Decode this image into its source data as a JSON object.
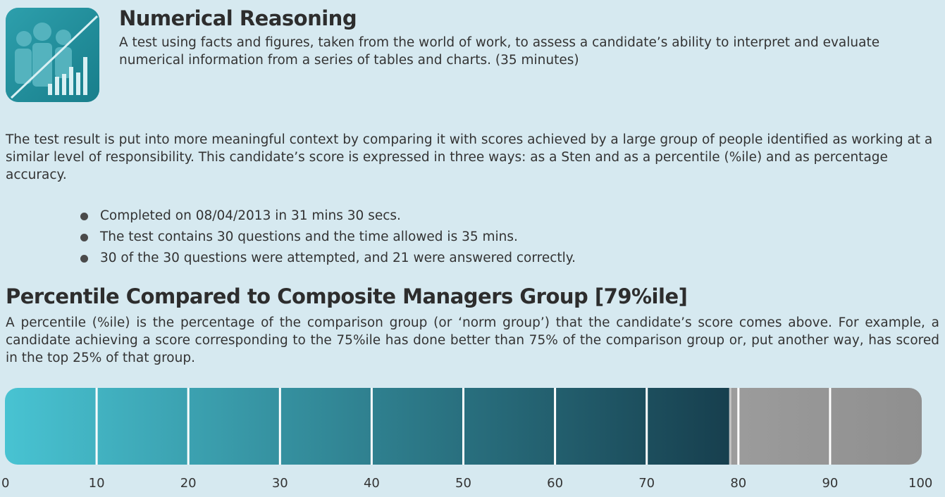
{
  "header": {
    "logo_icon": "people-chart-icon",
    "title": "Numerical Reasoning",
    "description": "A test using facts and figures, taken from the world of work, to assess a candidate’s ability to interpret and evaluate numerical information from a series of tables and charts. (35 minutes)"
  },
  "intro": "The test result is put into more meaningful context by comparing it with scores achieved by a large group of people identified as working at a similar level of responsibility. This candidate’s score is expressed in three ways: as a Sten and as a percentile (%ile) and as percentage accuracy.",
  "facts": [
    "Completed on 08/04/2013 in 31 mins 30 secs.",
    "The test contains 30 questions and the time allowed is 35 mins.",
    "30 of the 30 questions were attempted, and 21 were answered correctly."
  ],
  "percentile": {
    "title": "Percentile Compared to Composite Managers Group [79%ile]",
    "description": "A percentile (%ile) is the percentage of the comparison group (or ‘norm group’) that the candidate’s score comes above. For example, a candidate achieving a score corresponding to the 75%ile has done better than 75% of the comparison group or, put another way, has scored in the top 25% of that group."
  },
  "chart_data": {
    "type": "bar",
    "value": 79,
    "xlim": [
      0,
      100
    ],
    "tick_labels": [
      "0",
      "10",
      "20",
      "30",
      "40",
      "50",
      "60",
      "70",
      "80",
      "90",
      "100"
    ],
    "colors": {
      "filled_start": "#48c3d2",
      "filled_end": "#173f4e",
      "unfilled_start": "#9c9c9c",
      "unfilled_end": "#8f8f8f",
      "divider": "#ffffff"
    }
  }
}
